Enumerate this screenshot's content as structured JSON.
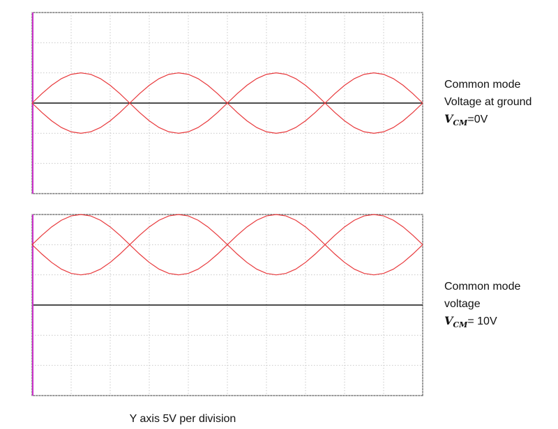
{
  "chart_data": [
    {
      "type": "line",
      "x": [
        0,
        0.25,
        0.5,
        0.75,
        1,
        1.25,
        1.5,
        1.75,
        2,
        2.25,
        2.5,
        2.75,
        3,
        3.25,
        3.5,
        3.75,
        4,
        4.25,
        4.5,
        4.75,
        5,
        5.25,
        5.5,
        5.75,
        6,
        6.25,
        6.5,
        6.75,
        7,
        7.25,
        7.5,
        7.75,
        8,
        8.25,
        8.5,
        8.75,
        9,
        9.25,
        9.5,
        9.75,
        10
      ],
      "series": [
        {
          "color": "#e8393c",
          "values": [
            0,
            1.55,
            2.94,
            4.05,
            4.76,
            5,
            4.76,
            4.05,
            2.94,
            1.55,
            0,
            -1.55,
            -2.94,
            -4.05,
            -4.76,
            -5,
            -4.76,
            -4.05,
            -2.94,
            -1.55,
            0,
            1.55,
            2.94,
            4.05,
            4.76,
            5,
            4.76,
            4.05,
            2.94,
            1.55,
            0,
            -1.55,
            -2.94,
            -4.05,
            -4.76,
            -5,
            -4.76,
            -4.05,
            -2.94,
            -1.55,
            0
          ]
        },
        {
          "color": "#e8393c",
          "values": [
            0,
            -1.55,
            -2.94,
            -4.05,
            -4.76,
            -5,
            -4.76,
            -4.05,
            -2.94,
            -1.55,
            0,
            1.55,
            2.94,
            4.05,
            4.76,
            5,
            4.76,
            4.05,
            2.94,
            1.55,
            0,
            -1.55,
            -2.94,
            -4.05,
            -4.76,
            -5,
            -4.76,
            -4.05,
            -2.94,
            -1.55,
            0,
            1.55,
            2.94,
            4.05,
            4.76,
            5,
            4.76,
            4.05,
            2.94,
            1.55,
            0
          ]
        }
      ],
      "xlim": [
        0,
        10
      ],
      "xticks": [
        0,
        1,
        2,
        3,
        4,
        5,
        6,
        7,
        8,
        9,
        10
      ],
      "ylim": [
        -15,
        15
      ],
      "yticks": [
        -15,
        -10,
        -5,
        0,
        5,
        10,
        15
      ],
      "grid": true,
      "annotation": {
        "lines": [
          "Common mode",
          "Voltage at ground"
        ],
        "symbol": "V",
        "subscript": "CM",
        "text": "=0V"
      }
    },
    {
      "type": "line",
      "x": [
        0,
        0.25,
        0.5,
        0.75,
        1,
        1.25,
        1.5,
        1.75,
        2,
        2.25,
        2.5,
        2.75,
        3,
        3.25,
        3.5,
        3.75,
        4,
        4.25,
        4.5,
        4.75,
        5,
        5.25,
        5.5,
        5.75,
        6,
        6.25,
        6.5,
        6.75,
        7,
        7.25,
        7.5,
        7.75,
        8,
        8.25,
        8.5,
        8.75,
        9,
        9.25,
        9.5,
        9.75,
        10
      ],
      "series": [
        {
          "color": "#e8393c",
          "values": [
            10,
            11.55,
            12.94,
            14.05,
            14.76,
            15,
            14.76,
            14.05,
            12.94,
            11.55,
            10,
            8.45,
            7.06,
            5.95,
            5.24,
            5,
            5.24,
            5.95,
            7.06,
            8.45,
            10,
            11.55,
            12.94,
            14.05,
            14.76,
            15,
            14.76,
            14.05,
            12.94,
            11.55,
            10,
            8.45,
            7.06,
            5.95,
            5.24,
            5,
            5.24,
            5.95,
            7.06,
            8.45,
            10
          ]
        },
        {
          "color": "#e8393c",
          "values": [
            10,
            8.45,
            7.06,
            5.95,
            5.24,
            5,
            5.24,
            5.95,
            7.06,
            8.45,
            10,
            11.55,
            12.94,
            14.05,
            14.76,
            15,
            14.76,
            14.05,
            12.94,
            11.55,
            10,
            8.45,
            7.06,
            5.95,
            5.24,
            5,
            5.24,
            5.95,
            7.06,
            8.45,
            10,
            11.55,
            12.94,
            14.05,
            14.76,
            15,
            14.76,
            14.05,
            12.94,
            11.55,
            10
          ]
        }
      ],
      "xlim": [
        0,
        10
      ],
      "xticks": [
        0,
        1,
        2,
        3,
        4,
        5,
        6,
        7,
        8,
        9,
        10
      ],
      "ylim": [
        -15,
        15
      ],
      "yticks": [
        -15,
        -10,
        -5,
        0,
        5,
        10,
        15
      ],
      "grid": true,
      "annotation": {
        "lines": [
          "Common mode",
          "voltage"
        ],
        "symbol": "V",
        "subscript": "CM",
        "text": "= 10V"
      }
    }
  ],
  "footnote": "Y axis 5V per division"
}
